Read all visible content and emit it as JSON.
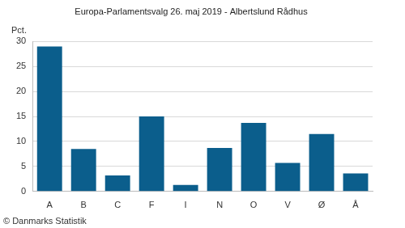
{
  "chart_data": {
    "type": "bar",
    "title": "Europa-Parlamentsvalg 26. maj 2019 - Albertslund Rådhus",
    "ylabel": "Pct.",
    "source": "© Danmarks Statistik",
    "categories": [
      "A",
      "B",
      "C",
      "F",
      "I",
      "N",
      "O",
      "V",
      "Ø",
      "Å"
    ],
    "values": [
      29.0,
      8.5,
      3.2,
      15.0,
      1.3,
      8.7,
      13.7,
      5.7,
      11.5,
      3.6
    ],
    "color": "#0b5e8c",
    "ylim": [
      0,
      30
    ],
    "yticks": [
      0,
      5,
      10,
      15,
      20,
      25,
      30
    ],
    "grid": true
  }
}
